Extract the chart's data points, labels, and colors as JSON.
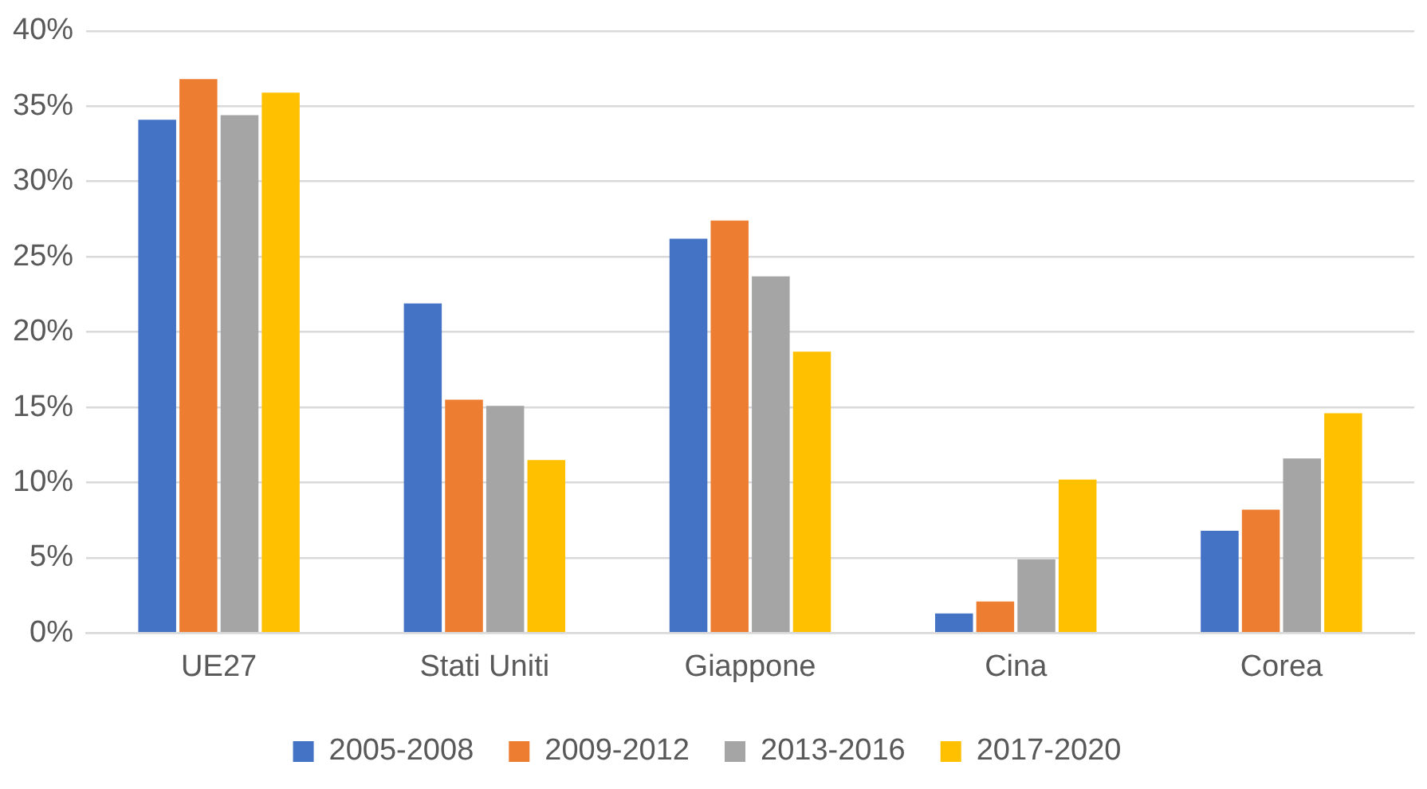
{
  "chart_data": {
    "type": "bar",
    "categories": [
      "UE27",
      "Stati Uniti",
      "Giappone",
      "Cina",
      "Corea"
    ],
    "series": [
      {
        "name": "2005-2008",
        "color": "#4472c4",
        "values": [
          34.1,
          21.9,
          26.2,
          1.3,
          6.8
        ]
      },
      {
        "name": "2009-2012",
        "color": "#ed7d31",
        "values": [
          36.8,
          15.5,
          27.4,
          2.1,
          8.2
        ]
      },
      {
        "name": "2013-2016",
        "color": "#a5a5a5",
        "values": [
          34.4,
          15.1,
          23.7,
          4.9,
          11.6
        ]
      },
      {
        "name": "2017-2020",
        "color": "#ffc000",
        "values": [
          35.9,
          11.5,
          18.7,
          10.2,
          14.6
        ]
      }
    ],
    "ylim": [
      0,
      40
    ],
    "yticks": [
      {
        "value": 0,
        "label": "0%"
      },
      {
        "value": 5,
        "label": "5%"
      },
      {
        "value": 10,
        "label": "10%"
      },
      {
        "value": 15,
        "label": "15%"
      },
      {
        "value": 20,
        "label": "20%"
      },
      {
        "value": 25,
        "label": "25%"
      },
      {
        "value": 30,
        "label": "30%"
      },
      {
        "value": 35,
        "label": "35%"
      },
      {
        "value": 40,
        "label": "40%"
      }
    ],
    "grid": "y",
    "legend": "bottom"
  }
}
